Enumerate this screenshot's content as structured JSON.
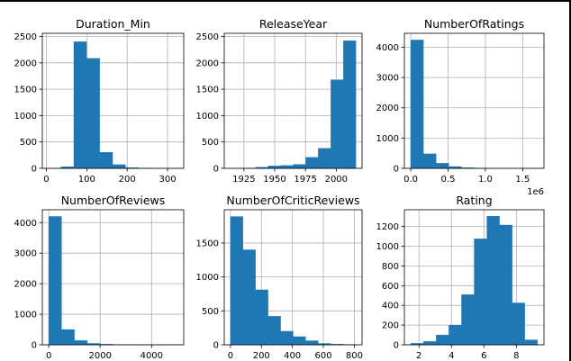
{
  "chart_data": [
    {
      "type": "bar",
      "title": "Duration_Min",
      "bin_edges": [
        4,
        36,
        68,
        100,
        132,
        164,
        196,
        228,
        260,
        292,
        324
      ],
      "values": [
        2,
        30,
        2400,
        2085,
        305,
        70,
        15,
        4,
        2,
        1
      ],
      "xlim": [
        -10,
        340
      ],
      "ylim": [
        0,
        2560
      ],
      "xticks": [
        0,
        100,
        200,
        300
      ],
      "yticks": [
        0,
        500,
        1000,
        1500,
        2000,
        2500
      ],
      "grid": true,
      "color": "#1f77b4"
    },
    {
      "type": "bar",
      "title": "ReleaseYear",
      "bin_edges": [
        1914,
        1924.2,
        1934.4,
        1944.6,
        1954.8,
        1965,
        1975.2,
        1985.4,
        1995.6,
        2005.8,
        2016
      ],
      "values": [
        2,
        5,
        22,
        45,
        55,
        75,
        210,
        380,
        1680,
        2420
      ],
      "xlim": [
        1909,
        2021
      ],
      "ylim": [
        0,
        2560
      ],
      "xticks": [
        1925,
        1950,
        1975,
        2000
      ],
      "yticks": [
        0,
        500,
        1000,
        1500,
        2000,
        2500
      ],
      "grid": true,
      "color": "#1f77b4"
    },
    {
      "type": "bar",
      "title": "NumberOfRatings",
      "bin_edges": [
        0,
        170000,
        340000,
        510000,
        680000,
        850000,
        1020000,
        1190000,
        1360000,
        1530000,
        1700000
      ],
      "values": [
        4240,
        480,
        170,
        60,
        20,
        8,
        4,
        3,
        1,
        1
      ],
      "xlim": [
        -85000,
        1785000
      ],
      "ylim": [
        0,
        4460
      ],
      "xticks": [
        0,
        500000,
        1000000,
        1500000
      ],
      "xtick_labels": [
        "0.0",
        "0.5",
        "1.0",
        "1.5"
      ],
      "x_offset_label": "1e6",
      "yticks": [
        0,
        1000,
        2000,
        3000,
        4000
      ],
      "grid": true,
      "color": "#1f77b4"
    },
    {
      "type": "bar",
      "title": "NumberOfReviews",
      "bin_edges": [
        0,
        500,
        1000,
        1500,
        2000,
        2500,
        3000,
        3500,
        4000,
        4500,
        5000
      ],
      "values": [
        4200,
        500,
        140,
        45,
        20,
        10,
        5,
        3,
        2,
        1
      ],
      "xlim": [
        -250,
        5250
      ],
      "ylim": [
        0,
        4420
      ],
      "xticks": [
        0,
        2000,
        4000
      ],
      "yticks": [
        0,
        1000,
        2000,
        3000,
        4000
      ],
      "grid": true,
      "color": "#1f77b4"
    },
    {
      "type": "bar",
      "title": "NumberOfCriticReviews",
      "bin_edges": [
        0,
        81,
        162,
        243,
        324,
        405,
        486,
        567,
        648,
        729,
        810
      ],
      "values": [
        1890,
        1400,
        810,
        420,
        200,
        120,
        60,
        20,
        10,
        5
      ],
      "xlim": [
        -40,
        850
      ],
      "ylim": [
        0,
        1990
      ],
      "xticks": [
        0,
        200,
        400,
        600,
        800
      ],
      "yticks": [
        0,
        500,
        1000,
        1500
      ],
      "grid": true,
      "color": "#1f77b4"
    },
    {
      "type": "bar",
      "title": "Rating",
      "bin_edges": [
        1.5,
        2.28,
        3.06,
        3.84,
        4.62,
        5.4,
        6.18,
        6.96,
        7.74,
        8.52,
        9.3
      ],
      "values": [
        15,
        35,
        100,
        200,
        510,
        1075,
        1305,
        1215,
        425,
        50
      ],
      "xlim": [
        1.1,
        9.7
      ],
      "ylim": [
        0,
        1370
      ],
      "xticks": [
        2,
        4,
        6,
        8
      ],
      "yticks": [
        0,
        200,
        400,
        600,
        800,
        1000,
        1200
      ],
      "grid": true,
      "color": "#1f77b4"
    }
  ]
}
